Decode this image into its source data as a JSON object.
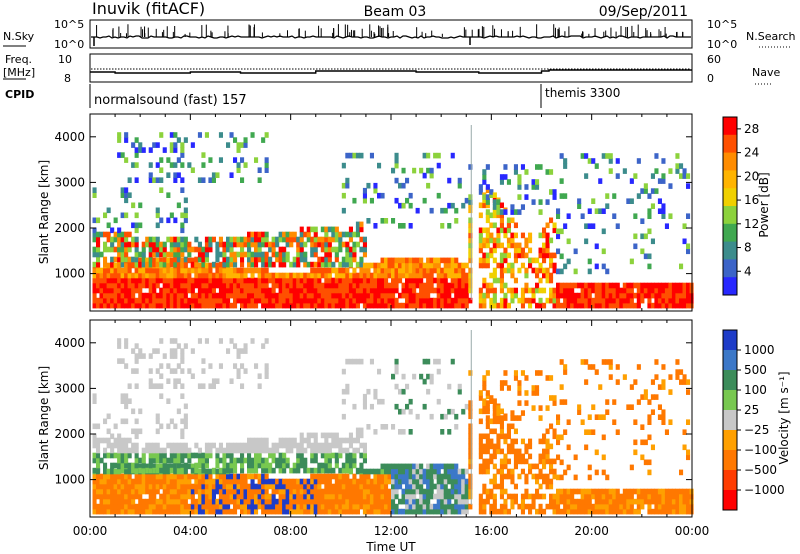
{
  "header": {
    "station": "Inuvik (fitACF)",
    "beam": "Beam 03",
    "date": "09/Sep/2011"
  },
  "status_panel": {
    "nsky_label": "N.Sky",
    "nsky_ticks": [
      "10^5",
      "10^0"
    ],
    "nsearch_label": "N.Search",
    "nsearch_ticks": [
      "10^5",
      "10^0"
    ],
    "freq_label": "Freq.",
    "freq_unit": "[MHz]",
    "freq_ticks": [
      "10",
      "8"
    ],
    "nave_label": "Nave",
    "nave_ticks": [
      "60",
      "0"
    ],
    "cpid_label": "CPID",
    "cpid_segments": [
      {
        "label": "normalsound (fast) 157",
        "start_hour": 0
      },
      {
        "label": "themis 3300",
        "start_hour": 18
      }
    ]
  },
  "time_axis": {
    "label": "Time UT",
    "ticks": [
      "00:00",
      "04:00",
      "08:00",
      "12:00",
      "16:00",
      "20:00",
      "00:00"
    ]
  },
  "chart_data": [
    {
      "type": "heatmap",
      "title": "Power",
      "ylabel": "Slant Range [km]",
      "xlabel": "",
      "x_range_hours": [
        0,
        24
      ],
      "ylim": [
        180,
        4500
      ],
      "yticks": [
        "1000",
        "2000",
        "3000",
        "4000"
      ],
      "colorbar": {
        "label": "Power [dB]",
        "ticks": [
          "28",
          "24",
          "20",
          "16",
          "12",
          "8",
          "4"
        ],
        "tick_values": [
          28,
          24,
          20,
          16,
          12,
          8,
          4
        ],
        "colors": [
          "#ff0000",
          "#ff5000",
          "#ff8c00",
          "#ffb400",
          "#f0d000",
          "#8cd23c",
          "#40a850",
          "#3c8c8c",
          "#3c64c8",
          "#2828ff"
        ]
      }
    },
    {
      "type": "heatmap",
      "title": "Velocity",
      "ylabel": "Slant Range [km]",
      "xlabel": "Time UT",
      "x_range_hours": [
        0,
        24
      ],
      "ylim": [
        180,
        4500
      ],
      "yticks": [
        "1000",
        "2000",
        "3000",
        "4000"
      ],
      "colorbar": {
        "label": "Velocity [m s⁻¹]",
        "ticks": [
          "1000",
          "500",
          "100",
          "25",
          "−25",
          "−100",
          "−500",
          "−1000"
        ],
        "colors": [
          "#1e3cc8",
          "#3c78c8",
          "#3c8c5a",
          "#78c850",
          "#c8c8c8",
          "#ffa000",
          "#ff7800",
          "#ff3c00",
          "#ff0000"
        ]
      }
    }
  ]
}
